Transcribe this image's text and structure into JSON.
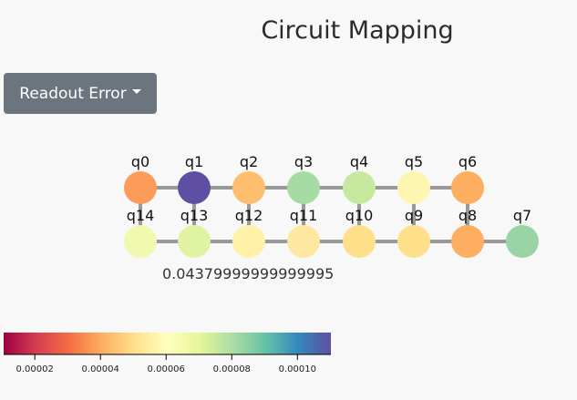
{
  "title": "Circuit Mapping",
  "dropdown": {
    "label": "Readout Error"
  },
  "hover_value": "0.04379999999999995",
  "qubits": [
    {
      "id": "q0",
      "color": "#fd9b5a"
    },
    {
      "id": "q1",
      "color": "#5e4fa2"
    },
    {
      "id": "q2",
      "color": "#fdbf6f"
    },
    {
      "id": "q3",
      "color": "#a6dba4"
    },
    {
      "id": "q4",
      "color": "#c6e99f"
    },
    {
      "id": "q5",
      "color": "#fef6b0"
    },
    {
      "id": "q6",
      "color": "#fdae61"
    },
    {
      "id": "q7",
      "color": "#99d5a4"
    },
    {
      "id": "q8",
      "color": "#fdae61"
    },
    {
      "id": "q9",
      "color": "#fee08b"
    },
    {
      "id": "q10",
      "color": "#fee08b"
    },
    {
      "id": "q11",
      "color": "#fee7a0"
    },
    {
      "id": "q12",
      "color": "#fff1a8"
    },
    {
      "id": "q13",
      "color": "#e0f3a2"
    },
    {
      "id": "q14",
      "color": "#f1f9b0"
    }
  ],
  "colorbar": {
    "ticks": [
      "0.00002",
      "0.00004",
      "0.00006",
      "0.00008",
      "0.00010"
    ],
    "colors": [
      "#9e0142",
      "#d53e4f",
      "#f46d43",
      "#fdae61",
      "#fee08b",
      "#ffffbf",
      "#e6f598",
      "#abdda4",
      "#66c2a5",
      "#3288bd",
      "#5e4fa2"
    ]
  }
}
